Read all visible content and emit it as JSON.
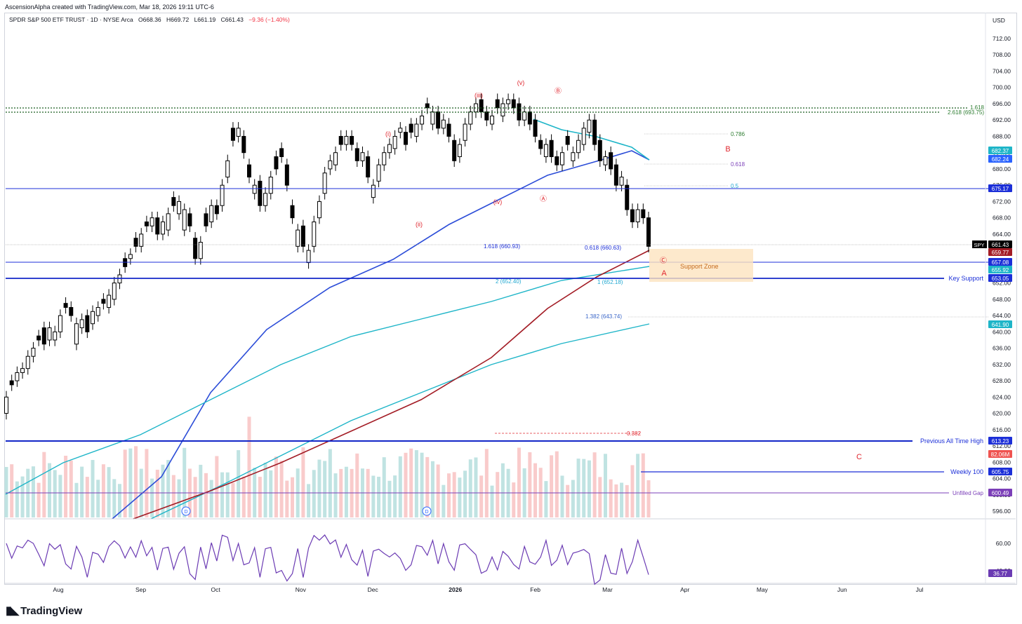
{
  "header": {
    "credit": "AscensionAlpha created with TradingView.com, Mar 18, 2026 19:11 UTC-6",
    "symbol": "SPDR S&P 500 ETF TRUST · 1D · NYSE Arca",
    "open": "O668.36",
    "high": "H669.72",
    "low": "L661.19",
    "close": "C661.43",
    "change": "−9.36 (−1.40%)",
    "currency": "USD"
  },
  "footer": {
    "brand": "TradingView",
    "logo_icon": "tradingview-logo-icon"
  },
  "colors": {
    "up": "#ffffff",
    "down": "#000000",
    "ma_blue": "#1e4bd2",
    "ma_teal": "#1eb5c8",
    "ma_red": "#a31c25",
    "level_blue": "#1c2fd8",
    "wave_red": "#e0272f",
    "rsi": "#6b3bb3",
    "fib_green": "#2e7d32",
    "fib_purple": "#7b3fb8",
    "fib_cyan": "#22a8d1",
    "support_zone": "#fde3bf"
  },
  "chart_data": {
    "type": "candlestick",
    "x_axis_labels": [
      {
        "label": "Aug",
        "date": "2025-08-01"
      },
      {
        "label": "Sep",
        "date": "2025-09-02"
      },
      {
        "label": "Oct",
        "date": "2025-10-01"
      },
      {
        "label": "Nov",
        "date": "2025-11-03"
      },
      {
        "label": "Dec",
        "date": "2025-12-01"
      },
      {
        "label": "2026",
        "date": "2026-01-02"
      },
      {
        "label": "Feb",
        "date": "2026-02-02"
      },
      {
        "label": "Mar",
        "date": "2026-03-02"
      },
      {
        "label": "Apr",
        "date": "2026-04-01"
      },
      {
        "label": "May",
        "date": "2026-05-01"
      },
      {
        "label": "Jun",
        "date": "2026-06-01"
      },
      {
        "label": "Jul",
        "date": "2026-07-01"
      }
    ],
    "price_ticks": [
      "712.00",
      "708.00",
      "704.00",
      "700.00",
      "696.00",
      "692.00",
      "688.00",
      "684.00",
      "680.00",
      "676.00",
      "672.00",
      "668.00",
      "664.00",
      "660.00",
      "656.00",
      "652.00",
      "648.00",
      "644.00",
      "640.00",
      "636.00",
      "632.00",
      "628.00",
      "624.00",
      "620.00",
      "616.00",
      "612.00",
      "608.00",
      "604.00",
      "600.00",
      "596.00"
    ],
    "ylim": [
      594,
      714
    ],
    "rsi_ticks": [
      "60.00",
      "40.00"
    ],
    "candles_path": [
      [
        624,
        4
      ],
      [
        627,
        -1
      ],
      [
        630,
        2
      ],
      [
        631,
        1
      ],
      [
        634,
        3
      ],
      [
        636,
        2
      ],
      [
        638,
        -1
      ],
      [
        637,
        -4
      ],
      [
        641,
        3
      ],
      [
        640,
        2
      ],
      [
        644,
        4
      ],
      [
        646,
        -1
      ],
      [
        644,
        -2
      ],
      [
        642,
        5
      ],
      [
        643,
        2
      ],
      [
        640,
        -4
      ],
      [
        645,
        3
      ],
      [
        646,
        2
      ],
      [
        647,
        -1
      ],
      [
        649,
        3
      ],
      [
        652,
        4
      ],
      [
        654,
        2
      ],
      [
        656,
        -2
      ],
      [
        659,
        1
      ],
      [
        661,
        -2
      ],
      [
        664,
        3
      ],
      [
        666,
        -1
      ],
      [
        668,
        2
      ],
      [
        664,
        -4
      ],
      [
        667,
        3
      ],
      [
        669,
        4
      ],
      [
        671,
        -2
      ],
      [
        672,
        3
      ],
      [
        670,
        5
      ],
      [
        666,
        -3
      ],
      [
        658,
        -5
      ],
      [
        662,
        4
      ],
      [
        666,
        -3
      ],
      [
        671,
        4
      ],
      [
        669,
        -2
      ],
      [
        676,
        5
      ],
      [
        682,
        4
      ],
      [
        687,
        -3
      ],
      [
        690,
        2
      ],
      [
        684,
        -4
      ],
      [
        678,
        -3
      ],
      [
        676,
        2
      ],
      [
        671,
        -6
      ],
      [
        674,
        3
      ],
      [
        678,
        4
      ],
      [
        680,
        -3
      ],
      [
        683,
        -2
      ],
      [
        676,
        -5
      ],
      [
        668,
        -3
      ],
      [
        665,
        4
      ],
      [
        661,
        -5
      ],
      [
        660,
        3
      ],
      [
        667,
        6
      ],
      [
        672,
        4
      ],
      [
        679,
        5
      ],
      [
        682,
        2
      ],
      [
        684,
        3
      ],
      [
        686,
        -2
      ],
      [
        688,
        2
      ],
      [
        686,
        -2
      ],
      [
        682,
        -3
      ],
      [
        684,
        2
      ],
      [
        678,
        -5
      ],
      [
        676,
        3
      ],
      [
        681,
        4
      ],
      [
        684,
        3
      ],
      [
        686,
        2
      ],
      [
        688,
        3
      ],
      [
        690,
        1
      ],
      [
        686,
        -3
      ],
      [
        689,
        -2
      ],
      [
        691,
        3
      ],
      [
        693,
        2
      ],
      [
        695,
        -1
      ],
      [
        694,
        3
      ],
      [
        690,
        -4
      ],
      [
        692,
        2
      ],
      [
        688,
        -3
      ],
      [
        682,
        -5
      ],
      [
        686,
        3
      ],
      [
        691,
        4
      ],
      [
        694,
        3
      ],
      [
        696,
        2
      ],
      [
        694,
        -3
      ],
      [
        692,
        -2
      ],
      [
        693,
        2
      ],
      [
        695,
        -2
      ],
      [
        696,
        3
      ],
      [
        697,
        1
      ],
      [
        695,
        -2
      ],
      [
        692,
        -4
      ],
      [
        694,
        2
      ],
      [
        691,
        -3
      ],
      [
        688,
        -4
      ],
      [
        685,
        -2
      ],
      [
        686,
        3
      ],
      [
        683,
        -4
      ],
      [
        681,
        -2
      ],
      [
        684,
        3
      ],
      [
        686,
        -2
      ],
      [
        684,
        2
      ],
      [
        687,
        3
      ],
      [
        690,
        4
      ],
      [
        692,
        3
      ],
      [
        686,
        -6
      ],
      [
        682,
        -5
      ],
      [
        683,
        2
      ],
      [
        680,
        -4
      ],
      [
        676,
        -5
      ],
      [
        678,
        2
      ],
      [
        670,
        -6
      ],
      [
        667,
        -3
      ],
      [
        670,
        3
      ],
      [
        668,
        -2
      ],
      [
        661,
        -7
      ]
    ]
  },
  "indicators": {
    "price_badges": [
      {
        "value": "682.37",
        "color": "#1eb5c8"
      },
      {
        "value": "682.24",
        "color": "#2962ff"
      },
      {
        "value": "675.17",
        "color": "#1c2fd8"
      },
      {
        "value": "661.43",
        "color": "#000000",
        "tag": "SPY"
      },
      {
        "value": "659.77",
        "color": "#a31c25"
      },
      {
        "value": "657.08",
        "color": "#1c2fd8"
      },
      {
        "value": "655.92",
        "color": "#1eb5c8"
      },
      {
        "value": "653.05",
        "color": "#1c2fd8"
      },
      {
        "value": "641.90",
        "color": "#1eb5c8"
      },
      {
        "value": "613.23",
        "color": "#1c2fd8"
      },
      {
        "value": "82.06M",
        "color": "#ef5350"
      },
      {
        "value": "605.75",
        "color": "#1c2fd8"
      },
      {
        "value": "600.49",
        "color": "#7b3fb8"
      },
      {
        "value": "36.77",
        "color": "#6b3bb3"
      }
    ],
    "level_labels": {
      "key_support": "Key Support",
      "previous_ath": "Previous All Time High",
      "weekly_100": "Weekly 100",
      "unfilled_gap": "Unfilled Gap",
      "support_zone": "Support Zone"
    },
    "fib_labels": {
      "f1618_top": "1.618",
      "f2618": "2.618 (693.75)",
      "f0786": "0.786",
      "f0618": "0.618",
      "f05": "0.5",
      "f1618_660": "1.618 (660.93)",
      "f0618_660": "0.618 (660.63)",
      "f2_652": "2 (652.40)",
      "f1_652": "1 (652.18)",
      "f1382": "1.382 (643.74)",
      "f0382": "0.382"
    },
    "wave_labels": {
      "w_i": "(i)",
      "w_ii": "(ii)",
      "w_iii": "(iii)",
      "w_iv": "(iv)",
      "w_v": "(v)",
      "w_A_circ": "Ⓐ",
      "w_B_circ": "Ⓑ",
      "w_C_circ": "Ⓒ",
      "big_A": "A",
      "big_B": "B",
      "big_C": "C",
      "div_d": "D"
    }
  }
}
